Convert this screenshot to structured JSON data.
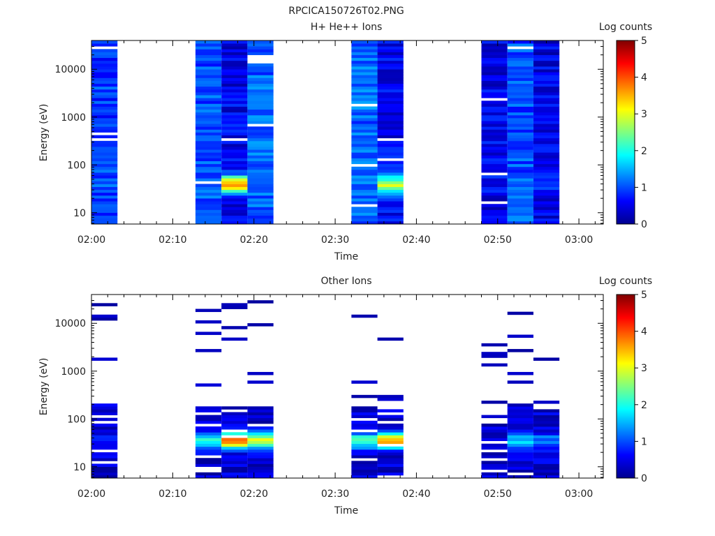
{
  "figure_title": "RPCICA150726T02.PNG",
  "chart_data": [
    {
      "type": "heatmap",
      "title": "H+ He++ Ions",
      "xlabel": "Time",
      "ylabel": "Energy (eV)",
      "colorbar_label": "Log counts",
      "y_scale": "log",
      "ylim": [
        5.8,
        40000
      ],
      "y_ticks": [
        10,
        100,
        1000,
        10000
      ],
      "y_ticklabels": [
        "10",
        "100",
        "1000",
        "10000"
      ],
      "x_range_min": [
        0,
        63
      ],
      "x_ticks_min": [
        0,
        10,
        20,
        30,
        40,
        50,
        60
      ],
      "x_ticklabels": [
        "02:00",
        "02:10",
        "02:20",
        "02:30",
        "02:40",
        "02:50",
        "03:00"
      ],
      "colorbar_range": [
        0,
        5
      ],
      "colorbar_ticks": [
        "0",
        "1",
        "2",
        "3",
        "4",
        "5"
      ],
      "grid": false,
      "time_blocks": [
        {
          "start_min": 0.0,
          "end_min": 3.2,
          "low_energy_peak": 1.0,
          "background": 0.9
        },
        {
          "start_min": 12.8,
          "end_min": 16.0,
          "low_energy_peak": 1.2,
          "background": 1.0
        },
        {
          "start_min": 16.0,
          "end_min": 19.2,
          "low_energy_peak": 3.6,
          "background": 0.55
        },
        {
          "start_min": 19.2,
          "end_min": 22.4,
          "low_energy_peak": 1.1,
          "background": 1.1
        },
        {
          "start_min": 32.0,
          "end_min": 35.2,
          "low_energy_peak": 1.2,
          "background": 1.1
        },
        {
          "start_min": 35.2,
          "end_min": 38.4,
          "low_energy_peak": 2.8,
          "background": 0.6
        },
        {
          "start_min": 48.0,
          "end_min": 51.2,
          "low_energy_peak": 0.7,
          "background": 0.55
        },
        {
          "start_min": 51.2,
          "end_min": 54.4,
          "low_energy_peak": 1.0,
          "background": 1.0
        },
        {
          "start_min": 54.4,
          "end_min": 57.6,
          "low_energy_peak": 1.2,
          "background": 0.5
        }
      ]
    },
    {
      "type": "heatmap",
      "title": "Other Ions",
      "xlabel": "Time",
      "ylabel": "Energy (eV)",
      "colorbar_label": "Log counts",
      "y_scale": "log",
      "ylim": [
        5.8,
        40000
      ],
      "y_ticks": [
        10,
        100,
        1000,
        10000
      ],
      "y_ticklabels": [
        "10",
        "100",
        "1000",
        "10000"
      ],
      "x_range_min": [
        0,
        63
      ],
      "x_ticks_min": [
        0,
        10,
        20,
        30,
        40,
        50,
        60
      ],
      "x_ticklabels": [
        "02:00",
        "02:10",
        "02:20",
        "02:30",
        "02:40",
        "02:50",
        "03:00"
      ],
      "colorbar_range": [
        0,
        5
      ],
      "colorbar_ticks": [
        "0",
        "1",
        "2",
        "3",
        "4",
        "5"
      ],
      "grid": false,
      "time_blocks": [
        {
          "start_min": 0.0,
          "end_min": 3.2,
          "low_energy_peak": 0.8,
          "max_energy_ev": 220
        },
        {
          "start_min": 12.8,
          "end_min": 16.0,
          "low_energy_peak": 2.2,
          "max_energy_ev": 190
        },
        {
          "start_min": 16.0,
          "end_min": 19.2,
          "low_energy_peak": 3.7,
          "max_energy_ev": 190
        },
        {
          "start_min": 19.2,
          "end_min": 22.4,
          "low_energy_peak": 3.0,
          "max_energy_ev": 190
        },
        {
          "start_min": 32.0,
          "end_min": 35.2,
          "low_energy_peak": 2.4,
          "max_energy_ev": 190
        },
        {
          "start_min": 35.2,
          "end_min": 38.4,
          "low_energy_peak": 3.5,
          "max_energy_ev": 190
        },
        {
          "start_min": 48.0,
          "end_min": 51.2,
          "low_energy_peak": 0.3,
          "max_energy_ev": 120
        },
        {
          "start_min": 51.2,
          "end_min": 54.4,
          "low_energy_peak": 1.7,
          "max_energy_ev": 190
        },
        {
          "start_min": 54.4,
          "end_min": 57.6,
          "low_energy_peak": 1.3,
          "max_energy_ev": 170
        }
      ]
    }
  ]
}
